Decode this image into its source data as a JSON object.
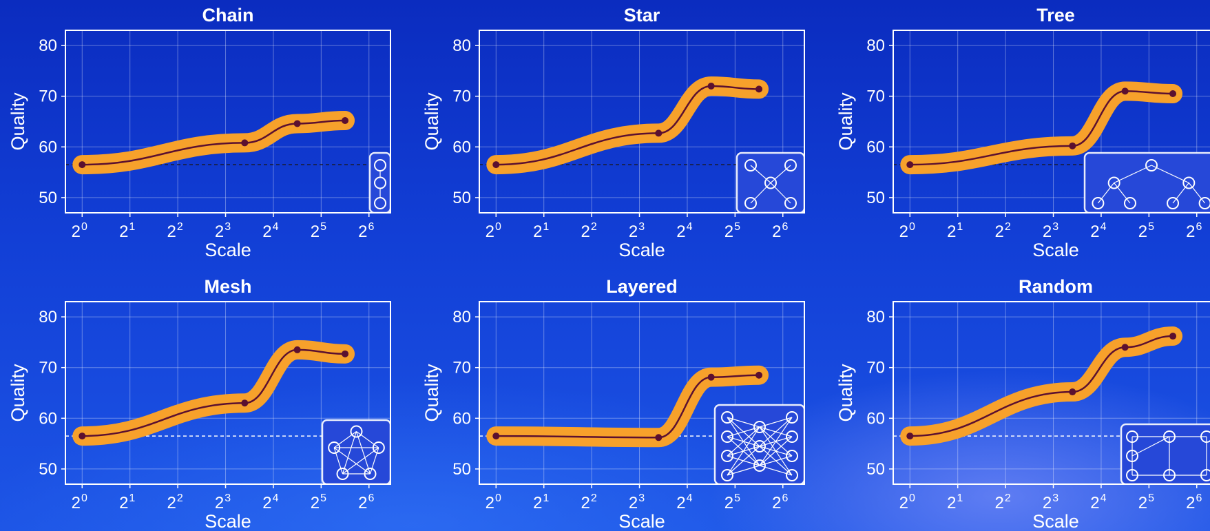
{
  "colors": {
    "background": "#1237d0",
    "band": "#f7a12b",
    "line": "#5b1030",
    "axes": "#ffffff",
    "baseline": "#ffffff"
  },
  "chart_data": [
    {
      "type": "line",
      "title": "Chain",
      "xlabel": "Scale",
      "ylabel": "Quality",
      "x": [
        "2^0",
        "2^3.4",
        "2^4.5",
        "2^5.5"
      ],
      "xticks": [
        "0",
        "1",
        "2",
        "3",
        "4",
        "5",
        "6"
      ],
      "values": [
        56.5,
        60.8,
        64.6,
        65.2
      ],
      "baseline": 56.5,
      "ylim": [
        47,
        83
      ],
      "xlim_log2": [
        -0.35,
        6.45
      ],
      "yticks": [
        50,
        60,
        70,
        80
      ],
      "grid": true,
      "inset": "chain"
    },
    {
      "type": "line",
      "title": "Star",
      "xlabel": "Scale",
      "ylabel": "Quality",
      "x": [
        "2^0",
        "2^3.4",
        "2^4.5",
        "2^5.5"
      ],
      "xticks": [
        "0",
        "1",
        "2",
        "3",
        "4",
        "5",
        "6"
      ],
      "values": [
        56.5,
        62.7,
        72.0,
        71.4
      ],
      "baseline": 56.5,
      "ylim": [
        47,
        83
      ],
      "xlim_log2": [
        -0.35,
        6.45
      ],
      "yticks": [
        50,
        60,
        70,
        80
      ],
      "grid": true,
      "inset": "star"
    },
    {
      "type": "line",
      "title": "Tree",
      "xlabel": "Scale",
      "ylabel": "Quality",
      "x": [
        "2^0",
        "2^3.4",
        "2^4.5",
        "2^5.5"
      ],
      "xticks": [
        "0",
        "1",
        "2",
        "3",
        "4",
        "5",
        "6"
      ],
      "values": [
        56.5,
        60.2,
        71.0,
        70.5
      ],
      "baseline": 56.5,
      "ylim": [
        47,
        83
      ],
      "xlim_log2": [
        -0.35,
        6.45
      ],
      "yticks": [
        50,
        60,
        70,
        80
      ],
      "grid": true,
      "inset": "tree"
    },
    {
      "type": "line",
      "title": "Mesh",
      "xlabel": "Scale",
      "ylabel": "Quality",
      "x": [
        "2^0",
        "2^3.4",
        "2^4.5",
        "2^5.5"
      ],
      "xticks": [
        "0",
        "1",
        "2",
        "3",
        "4",
        "5",
        "6"
      ],
      "values": [
        56.5,
        63.0,
        73.5,
        72.7
      ],
      "baseline": 56.5,
      "ylim": [
        47,
        83
      ],
      "xlim_log2": [
        -0.35,
        6.45
      ],
      "yticks": [
        50,
        60,
        70,
        80
      ],
      "grid": true,
      "inset": "mesh"
    },
    {
      "type": "line",
      "title": "Layered",
      "xlabel": "Scale",
      "ylabel": "Quality",
      "x": [
        "2^0",
        "2^3.4",
        "2^4.5",
        "2^5.5"
      ],
      "xticks": [
        "0",
        "1",
        "2",
        "3",
        "4",
        "5",
        "6"
      ],
      "values": [
        56.5,
        56.2,
        68.1,
        68.5
      ],
      "baseline": 56.5,
      "ylim": [
        47,
        83
      ],
      "xlim_log2": [
        -0.35,
        6.45
      ],
      "yticks": [
        50,
        60,
        70,
        80
      ],
      "grid": true,
      "inset": "layered"
    },
    {
      "type": "line",
      "title": "Random",
      "xlabel": "Scale",
      "ylabel": "Quality",
      "x": [
        "2^0",
        "2^3.4",
        "2^4.5",
        "2^5.5"
      ],
      "xticks": [
        "0",
        "1",
        "2",
        "3",
        "4",
        "5",
        "6"
      ],
      "values": [
        56.5,
        65.2,
        74.0,
        76.2
      ],
      "baseline": 56.5,
      "ylim": [
        47,
        83
      ],
      "xlim_log2": [
        -0.35,
        6.45
      ],
      "yticks": [
        50,
        60,
        70,
        80
      ],
      "grid": true,
      "inset": "random"
    }
  ]
}
